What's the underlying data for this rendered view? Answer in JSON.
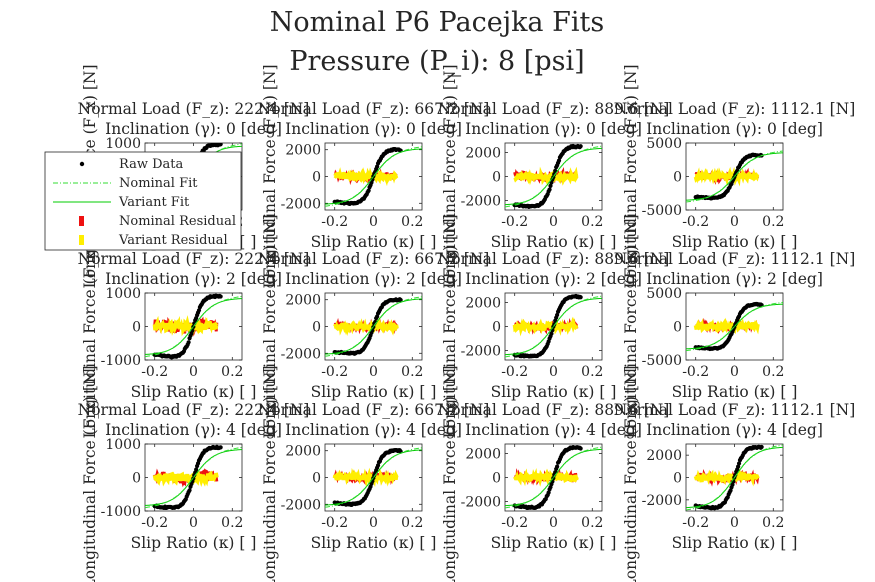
{
  "figure": {
    "title_line1": "Nominal P6 Pacejka Fits",
    "title_line2": "Pressure (P_i): 8 [psi]"
  },
  "legend": {
    "items": [
      {
        "label": "Raw Data",
        "kind": "dot",
        "color": "#000000"
      },
      {
        "label": "Nominal Fit",
        "kind": "dashdot",
        "color": "#33dd33"
      },
      {
        "label": "Variant Fit",
        "kind": "line",
        "color": "#00cc00"
      },
      {
        "label": "Nominal Residual",
        "kind": "patch",
        "color": "#ee1111"
      },
      {
        "label": "Variant Residual",
        "kind": "patch",
        "color": "#ffee00"
      }
    ]
  },
  "chart_data": {
    "type": "line",
    "x_label": "Slip Ratio (κ) [ ]",
    "y_label": "Longitudinal Force (F_x) [N]",
    "rows_inclination_deg": [
      0,
      2,
      4
    ],
    "cols_normal_load_N": [
      222.4,
      667.2,
      889.6,
      1112.1
    ],
    "subplot_title_load_prefix": "Normal Load (F_z): ",
    "subplot_title_load_unit": " [N]",
    "subplot_title_incl_prefix": "Inclination (γ): ",
    "subplot_title_incl_unit": " [deg]",
    "xlim": [
      -0.25,
      0.25
    ],
    "xticks": [
      -0.2,
      0,
      0.2
    ],
    "subplots": [
      {
        "row": 0,
        "col": 0,
        "Fz": "222.4",
        "gamma": "0",
        "ylim": [
          -1000,
          1000
        ],
        "yticks": [
          -1000,
          0,
          1000
        ],
        "peak_force": 950,
        "fit_plateau": 920,
        "nominal_residual_amp": 120,
        "variant_residual_amp": 90
      },
      {
        "row": 0,
        "col": 1,
        "Fz": "667.2",
        "gamma": "0",
        "ylim": [
          -2500,
          2500
        ],
        "yticks": [
          -2000,
          0,
          2000
        ],
        "peak_force": 2000,
        "fit_plateau": 2100,
        "nominal_residual_amp": 200,
        "variant_residual_amp": 180
      },
      {
        "row": 0,
        "col": 2,
        "Fz": "889.6",
        "gamma": "0",
        "ylim": [
          -2800,
          2800
        ],
        "yticks": [
          -2000,
          0,
          2000
        ],
        "peak_force": 2500,
        "fit_plateau": 2400,
        "nominal_residual_amp": 300,
        "variant_residual_amp": 250
      },
      {
        "row": 0,
        "col": 3,
        "Fz": "1112.1",
        "gamma": "0",
        "ylim": [
          -5000,
          5000
        ],
        "yticks": [
          -5000,
          0,
          5000
        ],
        "peak_force": 3200,
        "fit_plateau": 3600,
        "nominal_residual_amp": 450,
        "variant_residual_amp": 400
      },
      {
        "row": 1,
        "col": 0,
        "Fz": "222.4",
        "gamma": "2",
        "ylim": [
          -1000,
          1000
        ],
        "yticks": [
          -1000,
          0,
          1000
        ],
        "peak_force": 900,
        "fit_plateau": 850,
        "nominal_residual_amp": 160,
        "variant_residual_amp": 110
      },
      {
        "row": 1,
        "col": 1,
        "Fz": "667.2",
        "gamma": "2",
        "ylim": [
          -2500,
          2500
        ],
        "yticks": [
          -2000,
          0,
          2000
        ],
        "peak_force": 2000,
        "fit_plateau": 2100,
        "nominal_residual_amp": 180,
        "variant_residual_amp": 170
      },
      {
        "row": 1,
        "col": 2,
        "Fz": "889.6",
        "gamma": "2",
        "ylim": [
          -2800,
          2800
        ],
        "yticks": [
          -2000,
          0,
          2000
        ],
        "peak_force": 2500,
        "fit_plateau": 2400,
        "nominal_residual_amp": 240,
        "variant_residual_amp": 220
      },
      {
        "row": 1,
        "col": 3,
        "Fz": "1112.1",
        "gamma": "2",
        "ylim": [
          -5000,
          5000
        ],
        "yticks": [
          -5000,
          0,
          5000
        ],
        "peak_force": 3300,
        "fit_plateau": 3400,
        "nominal_residual_amp": 400,
        "variant_residual_amp": 380
      },
      {
        "row": 2,
        "col": 0,
        "Fz": "222.4",
        "gamma": "4",
        "ylim": [
          -1000,
          1000
        ],
        "yticks": [
          -1000,
          0,
          1000
        ],
        "peak_force": 900,
        "fit_plateau": 850,
        "nominal_residual_amp": 140,
        "variant_residual_amp": 120
      },
      {
        "row": 2,
        "col": 1,
        "Fz": "667.2",
        "gamma": "4",
        "ylim": [
          -2500,
          2500
        ],
        "yticks": [
          -2000,
          0,
          2000
        ],
        "peak_force": 2000,
        "fit_plateau": 2100,
        "nominal_residual_amp": 200,
        "variant_residual_amp": 190
      },
      {
        "row": 2,
        "col": 2,
        "Fz": "889.6",
        "gamma": "4",
        "ylim": [
          -2800,
          2800
        ],
        "yticks": [
          -2000,
          0,
          2000
        ],
        "peak_force": 2500,
        "fit_plateau": 2400,
        "nominal_residual_amp": 250,
        "variant_residual_amp": 230
      },
      {
        "row": 2,
        "col": 3,
        "Fz": "1112.1",
        "gamma": "4",
        "ylim": [
          -3000,
          3000
        ],
        "yticks": [
          -2000,
          0,
          2000
        ],
        "peak_force": 2700,
        "fit_plateau": 2750,
        "nominal_residual_amp": 300,
        "variant_residual_amp": 260
      }
    ]
  }
}
